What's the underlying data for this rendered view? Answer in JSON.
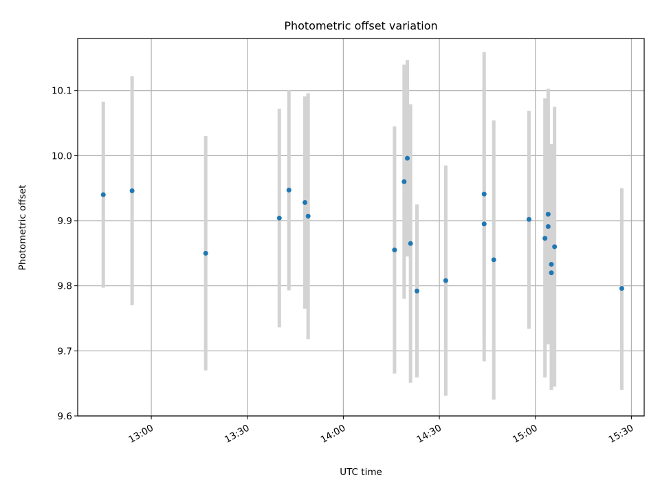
{
  "chart_data": {
    "type": "scatter",
    "title": "Photometric offset variation",
    "xlabel": "UTC time",
    "ylabel": "Photometric offset",
    "xlim": [
      "12:37",
      "15:34"
    ],
    "ylim": [
      9.6,
      10.18
    ],
    "x_ticks": [
      "13:00",
      "13:30",
      "14:00",
      "14:30",
      "15:00",
      "15:30"
    ],
    "y_ticks": [
      9.6,
      9.7,
      9.8,
      9.9,
      10.0,
      10.1
    ],
    "grid": true,
    "legend": "none",
    "colors": {
      "points": "#1f77b4",
      "errorbars": "#d3d3d3"
    },
    "points": [
      {
        "x": "12:45",
        "y": 9.94,
        "ylow": 9.797,
        "yhigh": 10.083
      },
      {
        "x": "12:54",
        "y": 9.946,
        "ylow": 9.77,
        "yhigh": 10.122
      },
      {
        "x": "13:17",
        "y": 9.85,
        "ylow": 9.67,
        "yhigh": 10.03
      },
      {
        "x": "13:40",
        "y": 9.904,
        "ylow": 9.736,
        "yhigh": 10.072
      },
      {
        "x": "13:43",
        "y": 9.947,
        "ylow": 9.793,
        "yhigh": 10.101
      },
      {
        "x": "13:48",
        "y": 9.928,
        "ylow": 9.765,
        "yhigh": 10.091
      },
      {
        "x": "13:49",
        "y": 9.907,
        "ylow": 9.718,
        "yhigh": 10.096
      },
      {
        "x": "14:16",
        "y": 9.855,
        "ylow": 9.665,
        "yhigh": 10.045
      },
      {
        "x": "14:19",
        "y": 9.96,
        "ylow": 9.78,
        "yhigh": 10.14
      },
      {
        "x": "14:20",
        "y": 9.996,
        "ylow": 9.845,
        "yhigh": 10.147
      },
      {
        "x": "14:21",
        "y": 9.865,
        "ylow": 9.651,
        "yhigh": 10.079
      },
      {
        "x": "14:23",
        "y": 9.792,
        "ylow": 9.659,
        "yhigh": 9.925
      },
      {
        "x": "14:32",
        "y": 9.808,
        "ylow": 9.631,
        "yhigh": 9.985
      },
      {
        "x": "14:44",
        "y": 9.895,
        "ylow": 9.684,
        "yhigh": 10.106
      },
      {
        "x": "14:44",
        "y": 9.941,
        "ylow": 9.723,
        "yhigh": 10.159
      },
      {
        "x": "14:47",
        "y": 9.84,
        "ylow": 9.625,
        "yhigh": 10.054
      },
      {
        "x": "14:58",
        "y": 9.902,
        "ylow": 9.734,
        "yhigh": 10.069
      },
      {
        "x": "15:03",
        "y": 9.873,
        "ylow": 9.659,
        "yhigh": 10.088
      },
      {
        "x": "15:04",
        "y": 9.891,
        "ylow": 9.71,
        "yhigh": 10.072
      },
      {
        "x": "15:04",
        "y": 9.91,
        "ylow": 9.715,
        "yhigh": 10.103
      },
      {
        "x": "15:05",
        "y": 9.82,
        "ylow": 9.64,
        "yhigh": 10.018
      },
      {
        "x": "15:05",
        "y": 9.833,
        "ylow": 9.662,
        "yhigh": 10.01
      },
      {
        "x": "15:06",
        "y": 9.86,
        "ylow": 9.645,
        "yhigh": 10.075
      },
      {
        "x": "15:27",
        "y": 9.796,
        "ylow": 9.64,
        "yhigh": 9.95
      }
    ]
  }
}
